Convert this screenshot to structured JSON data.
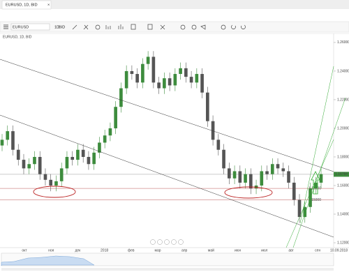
{
  "tab": {
    "title": "EURUSD, 1D, BID"
  },
  "toolbar": {
    "symbol": "EURUSD",
    "timeframe": "1D",
    "price_type": "BID"
  },
  "chart_data": {
    "type": "candlestick",
    "label": "EURUSD, 1D, BID",
    "up_color": "#3d8c3d",
    "down_color": "#555555",
    "ylim": [
      1.1166,
      1.2663
    ],
    "yticks": [
      {
        "value": 1.26,
        "label": "1.26000"
      },
      {
        "value": 1.24,
        "label": "1.24000"
      },
      {
        "value": 1.22,
        "label": "1.22000"
      },
      {
        "value": 1.2,
        "label": "1.20000"
      },
      {
        "value": 1.18,
        "label": "1.18000"
      },
      {
        "value": 1.16,
        "label": "1.16000"
      },
      {
        "value": 1.14,
        "label": "1.14000"
      },
      {
        "value": 1.12,
        "label": "1.12000"
      }
    ],
    "x_labels": [
      "окт",
      "ноя",
      "дек",
      "2018",
      "фев",
      "мар",
      "апр",
      "май",
      "июн",
      "июл",
      "авг",
      "сен"
    ],
    "end_date": "10.09.2018",
    "current_price": {
      "value": 1.16784,
      "label": "1.16784"
    },
    "levels": [
      {
        "value": 1.158,
        "label": "1.15800"
      },
      {
        "value": 1.15,
        "label": "1.15000"
      }
    ],
    "candles": [
      [
        1.188,
        1.196,
        1.184,
        1.192
      ],
      [
        1.192,
        1.202,
        1.188,
        1.198
      ],
      [
        1.198,
        1.202,
        1.181,
        1.185
      ],
      [
        1.185,
        1.189,
        1.174,
        1.178
      ],
      [
        1.178,
        1.182,
        1.168,
        1.172
      ],
      [
        1.172,
        1.179,
        1.168,
        1.175
      ],
      [
        1.175,
        1.184,
        1.171,
        1.18
      ],
      [
        1.18,
        1.184,
        1.164,
        1.168
      ],
      [
        1.168,
        1.172,
        1.16,
        1.164
      ],
      [
        1.164,
        1.168,
        1.156,
        1.16
      ],
      [
        1.16,
        1.167,
        1.156,
        1.163
      ],
      [
        1.163,
        1.176,
        1.159,
        1.172
      ],
      [
        1.172,
        1.184,
        1.168,
        1.18
      ],
      [
        1.18,
        1.184,
        1.174,
        1.178
      ],
      [
        1.178,
        1.189,
        1.174,
        1.185
      ],
      [
        1.185,
        1.189,
        1.176,
        1.18
      ],
      [
        1.18,
        1.184,
        1.171,
        1.175
      ],
      [
        1.175,
        1.187,
        1.171,
        1.183
      ],
      [
        1.183,
        1.194,
        1.179,
        1.19
      ],
      [
        1.19,
        1.199,
        1.186,
        1.195
      ],
      [
        1.195,
        1.204,
        1.191,
        1.2
      ],
      [
        1.2,
        1.219,
        1.196,
        1.215
      ],
      [
        1.215,
        1.232,
        1.211,
        1.228
      ],
      [
        1.228,
        1.244,
        1.224,
        1.24
      ],
      [
        1.24,
        1.244,
        1.234,
        1.238
      ],
      [
        1.238,
        1.242,
        1.228,
        1.232
      ],
      [
        1.232,
        1.249,
        1.228,
        1.245
      ],
      [
        1.245,
        1.254,
        1.241,
        1.25
      ],
      [
        1.25,
        1.254,
        1.228,
        1.232
      ],
      [
        1.232,
        1.236,
        1.224,
        1.228
      ],
      [
        1.228,
        1.239,
        1.224,
        1.235
      ],
      [
        1.235,
        1.239,
        1.226,
        1.23
      ],
      [
        1.23,
        1.242,
        1.226,
        1.238
      ],
      [
        1.238,
        1.246,
        1.234,
        1.242
      ],
      [
        1.242,
        1.246,
        1.232,
        1.236
      ],
      [
        1.236,
        1.24,
        1.228,
        1.232
      ],
      [
        1.232,
        1.242,
        1.228,
        1.238
      ],
      [
        1.238,
        1.242,
        1.221,
        1.225
      ],
      [
        1.225,
        1.229,
        1.201,
        1.205
      ],
      [
        1.205,
        1.209,
        1.188,
        1.192
      ],
      [
        1.192,
        1.196,
        1.181,
        1.185
      ],
      [
        1.185,
        1.189,
        1.168,
        1.172
      ],
      [
        1.172,
        1.176,
        1.161,
        1.165
      ],
      [
        1.165,
        1.174,
        1.161,
        1.17
      ],
      [
        1.17,
        1.174,
        1.158,
        1.162
      ],
      [
        1.162,
        1.172,
        1.158,
        1.168
      ],
      [
        1.168,
        1.172,
        1.154,
        1.158
      ],
      [
        1.158,
        1.164,
        1.154,
        1.16
      ],
      [
        1.16,
        1.174,
        1.156,
        1.17
      ],
      [
        1.17,
        1.174,
        1.164,
        1.168
      ],
      [
        1.168,
        1.179,
        1.164,
        1.175
      ],
      [
        1.175,
        1.179,
        1.168,
        1.172
      ],
      [
        1.172,
        1.176,
        1.166,
        1.17
      ],
      [
        1.17,
        1.174,
        1.158,
        1.162
      ],
      [
        1.162,
        1.166,
        1.146,
        1.15
      ],
      [
        1.15,
        1.154,
        1.134,
        1.138
      ],
      [
        1.138,
        1.149,
        1.134,
        1.145
      ],
      [
        1.145,
        1.162,
        1.141,
        1.158
      ],
      [
        1.158,
        1.166,
        1.154,
        1.162
      ],
      [
        1.162,
        1.172,
        1.158,
        1.168
      ]
    ]
  }
}
